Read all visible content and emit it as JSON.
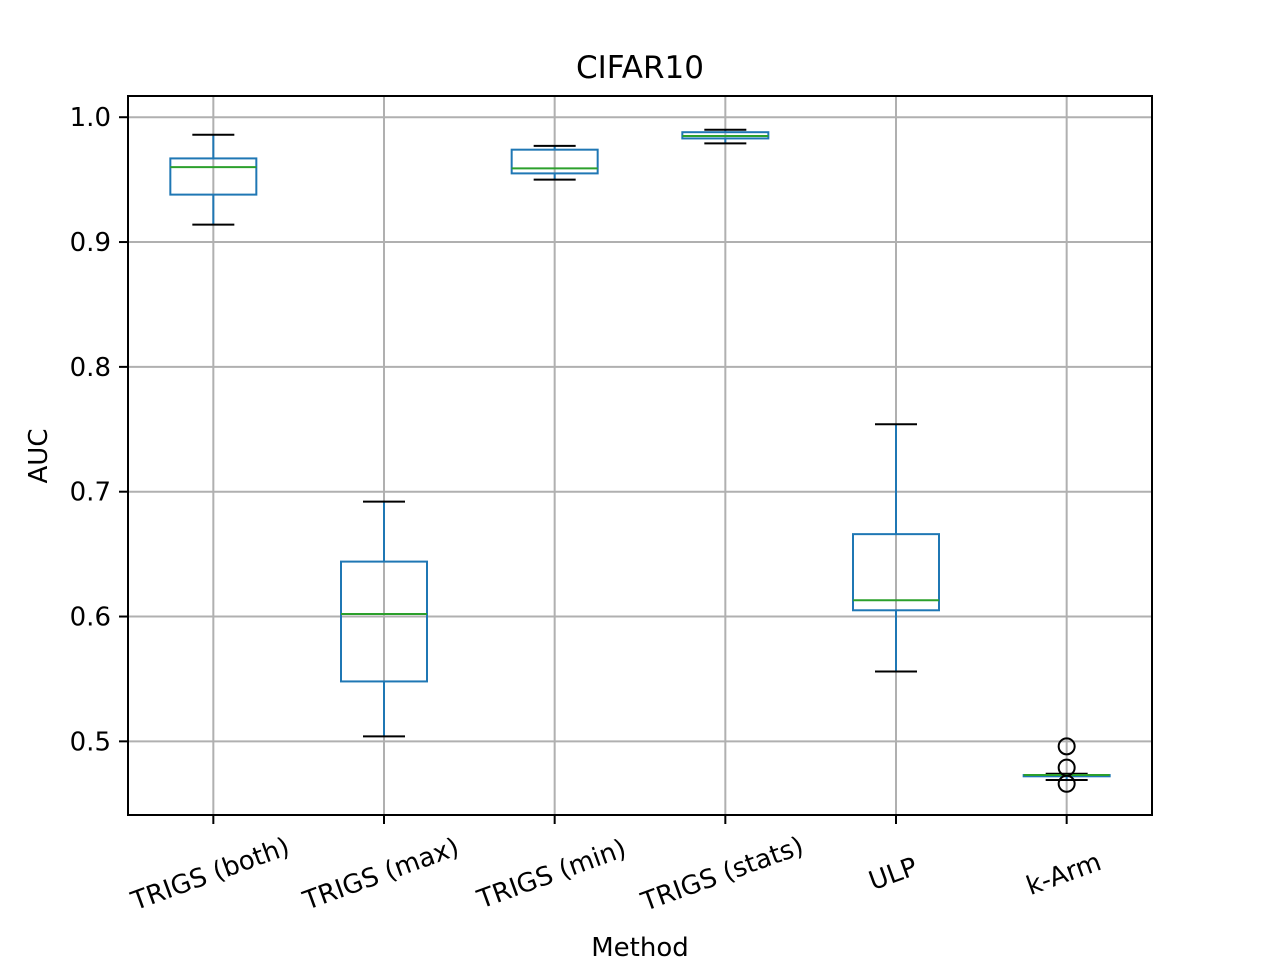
{
  "chart_data": {
    "type": "box",
    "title": "CIFAR10",
    "xlabel": "Method",
    "ylabel": "AUC",
    "ylim": [
      0.441,
      1.017
    ],
    "yticks": [
      0.5,
      0.6,
      0.7,
      0.8,
      0.9,
      1.0
    ],
    "ytick_labels": [
      "0.5",
      "0.6",
      "0.7",
      "0.8",
      "0.9",
      "1.0"
    ],
    "grid": true,
    "xtick_rotation_deg": 20,
    "categories": [
      "TRIGS (both)",
      "TRIGS (max)",
      "TRIGS (min)",
      "TRIGS (stats)",
      "ULP",
      "k-Arm"
    ],
    "boxes": [
      {
        "category": "TRIGS (both)",
        "whisker_low": 0.914,
        "q1": 0.938,
        "median": 0.96,
        "q3": 0.967,
        "whisker_high": 0.986,
        "outliers": []
      },
      {
        "category": "TRIGS (max)",
        "whisker_low": 0.504,
        "q1": 0.548,
        "median": 0.602,
        "q3": 0.644,
        "whisker_high": 0.692,
        "outliers": []
      },
      {
        "category": "TRIGS (min)",
        "whisker_low": 0.95,
        "q1": 0.955,
        "median": 0.959,
        "q3": 0.974,
        "whisker_high": 0.977,
        "outliers": []
      },
      {
        "category": "TRIGS (stats)",
        "whisker_low": 0.979,
        "q1": 0.983,
        "median": 0.985,
        "q3": 0.988,
        "whisker_high": 0.99,
        "outliers": []
      },
      {
        "category": "ULP",
        "whisker_low": 0.556,
        "q1": 0.605,
        "median": 0.613,
        "q3": 0.666,
        "whisker_high": 0.754,
        "outliers": []
      },
      {
        "category": "k-Arm",
        "whisker_low": 0.469,
        "q1": 0.472,
        "median": 0.473,
        "q3": 0.473,
        "whisker_high": 0.474,
        "outliers": [
          0.496,
          0.479,
          0.466
        ]
      }
    ],
    "colors": {
      "box": "#1f77b4",
      "median": "#2ca02c",
      "whisker_cap": "#000000",
      "grid": "#b0b0b0",
      "axes": "#000000"
    }
  }
}
